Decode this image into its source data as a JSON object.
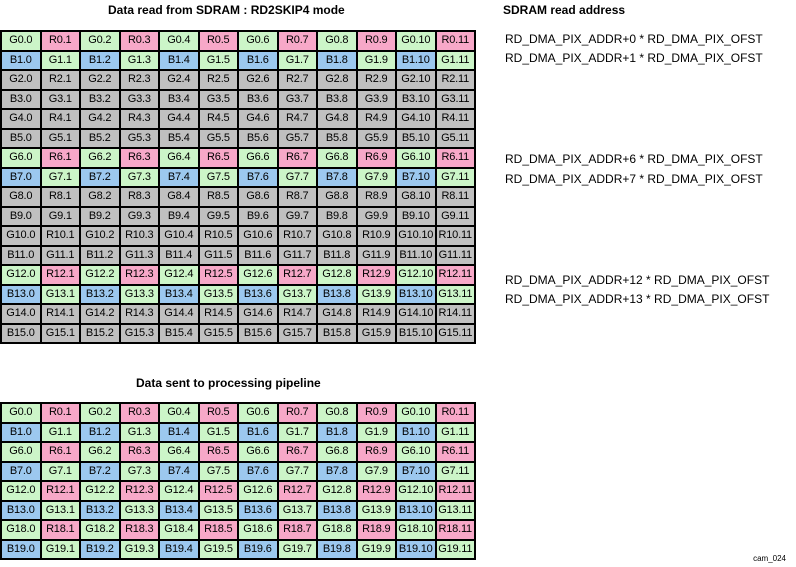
{
  "titles": {
    "top": "Data read from SDRAM : RD2SKIP4 mode",
    "address": "SDRAM read address",
    "bottom": "Data sent to processing pipeline"
  },
  "addresses": [
    "RD_DMA_PIX_ADDR+0 * RD_DMA_PIX_OFST",
    "RD_DMA_PIX_ADDR+1 * RD_DMA_PIX_OFST",
    "RD_DMA_PIX_ADDR+6 * RD_DMA_PIX_OFST",
    "RD_DMA_PIX_ADDR+7 * RD_DMA_PIX_OFST",
    "RD_DMA_PIX_ADDR+12 * RD_DMA_PIX_OFST",
    "RD_DMA_PIX_ADDR+13 * RD_DMA_PIX_OFST"
  ],
  "image_tag": "cam_024",
  "colors": {
    "green": "#ccf5c8",
    "red": "#f7a8c8",
    "blue": "#9cc8ef",
    "skipped": "#c0c0c0"
  },
  "top_grid": {
    "row_numbers": [
      0,
      1,
      2,
      3,
      4,
      5,
      6,
      7,
      8,
      9,
      10,
      11,
      12,
      13,
      14,
      15
    ],
    "highlighted_rows": [
      0,
      1,
      6,
      7,
      12,
      13
    ]
  },
  "bottom_grid": {
    "row_numbers": [
      0,
      1,
      6,
      7,
      12,
      13,
      18,
      19
    ],
    "highlighted_rows": [
      0,
      1,
      6,
      7,
      12,
      13,
      18,
      19
    ]
  }
}
